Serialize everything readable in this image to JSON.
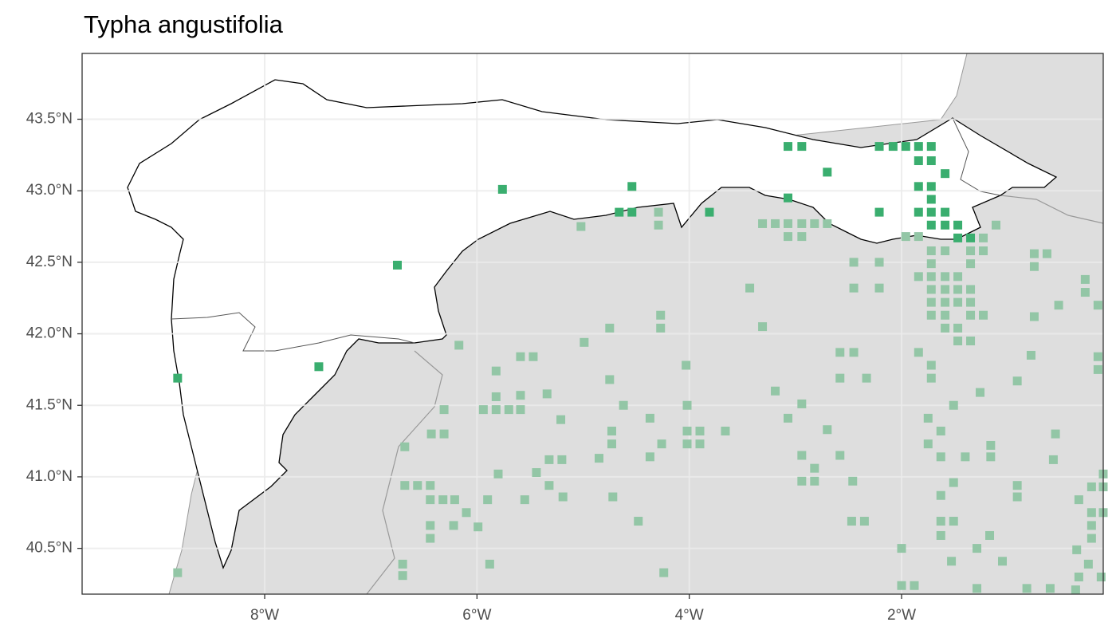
{
  "chart_data": {
    "type": "scatter",
    "title": "Typha angustifolia",
    "xlim": [
      -9.72,
      -0.1
    ],
    "ylim": [
      40.18,
      43.96
    ],
    "grid": true,
    "xticks": [
      {
        "value": -8,
        "label": "8°W"
      },
      {
        "value": -6,
        "label": "6°W"
      },
      {
        "value": -4,
        "label": "4°W"
      },
      {
        "value": -2,
        "label": "2°W"
      }
    ],
    "yticks": [
      {
        "value": 40.5,
        "label": "40.5°N"
      },
      {
        "value": 41.0,
        "label": "41.0°N"
      },
      {
        "value": 41.5,
        "label": "41.5°N"
      },
      {
        "value": 42.0,
        "label": "42.0°N"
      },
      {
        "value": 42.5,
        "label": "42.5°N"
      },
      {
        "value": 43.0,
        "label": "43.0°N"
      },
      {
        "value": 43.5,
        "label": "43.5°N"
      }
    ],
    "series": [
      {
        "color": "#93c6a6",
        "x": [
          -5.02,
          -4.29,
          -4.29,
          -3.31,
          -3.19,
          -3.07,
          -2.94,
          -2.82,
          -2.7,
          -3.07,
          -2.94,
          -1.11,
          -1.96,
          -1.84,
          -1.23,
          -1.23,
          -1.35,
          -1.72,
          -1.59,
          -2.45,
          -2.21,
          -1.72,
          -0.75,
          -0.63,
          -0.75,
          -1.35,
          -1.84,
          -1.72,
          -1.59,
          -1.47,
          -1.35,
          -2.45,
          -2.21,
          -3.43,
          -1.72,
          -1.59,
          -1.47,
          -1.72,
          -1.59,
          -1.47,
          -1.35,
          -0.27,
          -0.27,
          -0.52,
          -0.15,
          -1.72,
          -1.59,
          -1.35,
          -1.23,
          -0.75,
          -4.27,
          -4.27,
          -4.75,
          -3.31,
          -1.59,
          -1.47,
          -1.47,
          -1.35,
          -6.17,
          -4.99,
          -5.59,
          -5.47,
          -2.58,
          -2.45,
          -1.84,
          -0.78,
          -0.15,
          -0.15,
          -1.72,
          -4.03,
          -5.82,
          -2.58,
          -2.33,
          -1.72,
          -0.91,
          -4.75,
          -3.19,
          -1.26,
          -5.82,
          -5.59,
          -5.34,
          -5.94,
          -5.82,
          -5.7,
          -5.59,
          -4.62,
          -4.02,
          -2.94,
          -1.51,
          -6.31,
          -3.07,
          -1.75,
          -4.37,
          -5.21,
          -6.68,
          -6.43,
          -6.31,
          -4.73,
          -4.02,
          -3.9,
          -3.66,
          -2.7,
          -1.63,
          -0.55,
          -4.26,
          -4.73,
          -3.9,
          -4.02,
          -1.75,
          -1.16,
          -2.94,
          -2.58,
          -1.63,
          -1.4,
          -1.16,
          -0.57,
          -4.85,
          -4.37,
          -5.32,
          -5.2,
          -5.44,
          -2.82,
          -5.8,
          -2.94,
          -2.82,
          -2.46,
          -1.51,
          -6.68,
          -6.56,
          -6.44,
          -5.32,
          -0.91,
          -0.21,
          -0.1,
          -0.1,
          -6.44,
          -6.32,
          -6.21,
          -5.9,
          -5.55,
          -5.19,
          -4.72,
          -1.63,
          -0.91,
          -0.33,
          -0.21,
          -0.1,
          -6.1,
          -0.21,
          -1.63,
          -1.51,
          -2.47,
          -2.35,
          -1.17,
          -6.44,
          -6.22,
          -5.99,
          -4.48,
          -1.63,
          -0.21,
          -6.44,
          -1.29,
          -2.0,
          -0.35,
          -1.53,
          -1.05,
          -0.24,
          -6.7,
          -6.7,
          -5.88,
          -4.24,
          -0.33,
          -0.12,
          -8.82,
          -2.0,
          -1.88,
          -1.29,
          -0.82,
          -0.6,
          -0.36
        ],
        "values": [
          42.75,
          42.85,
          42.76,
          42.77,
          42.77,
          42.77,
          42.77,
          42.77,
          42.77,
          42.68,
          42.68,
          42.76,
          42.68,
          42.68,
          42.67,
          42.58,
          42.58,
          42.58,
          42.58,
          42.5,
          42.5,
          42.49,
          42.56,
          42.56,
          42.47,
          42.49,
          42.4,
          42.4,
          42.4,
          42.4,
          42.31,
          42.32,
          42.32,
          42.32,
          42.31,
          42.31,
          42.31,
          42.22,
          42.22,
          42.22,
          42.22,
          42.38,
          42.29,
          42.2,
          42.2,
          42.13,
          42.13,
          42.13,
          42.13,
          42.12,
          42.13,
          42.04,
          42.04,
          42.05,
          42.04,
          42.04,
          41.95,
          41.95,
          41.92,
          41.94,
          41.84,
          41.84,
          41.87,
          41.87,
          41.87,
          41.85,
          41.84,
          41.75,
          41.78,
          41.78,
          41.74,
          41.69,
          41.69,
          41.69,
          41.67,
          41.68,
          41.6,
          41.59,
          41.56,
          41.57,
          41.58,
          41.47,
          41.47,
          41.47,
          41.47,
          41.5,
          41.5,
          41.51,
          41.5,
          41.47,
          41.41,
          41.41,
          41.41,
          41.4,
          41.21,
          41.3,
          41.3,
          41.32,
          41.32,
          41.32,
          41.32,
          41.33,
          41.32,
          41.3,
          41.23,
          41.23,
          41.23,
          41.23,
          41.23,
          41.22,
          41.15,
          41.15,
          41.14,
          41.14,
          41.14,
          41.12,
          41.13,
          41.14,
          41.12,
          41.12,
          41.03,
          41.06,
          41.02,
          40.97,
          40.97,
          40.97,
          40.96,
          40.94,
          40.94,
          40.94,
          40.94,
          40.94,
          40.93,
          40.93,
          41.02,
          40.84,
          40.84,
          40.84,
          40.84,
          40.84,
          40.86,
          40.86,
          40.87,
          40.86,
          40.84,
          40.75,
          40.75,
          40.75,
          40.66,
          40.69,
          40.69,
          40.69,
          40.69,
          40.59,
          40.66,
          40.66,
          40.65,
          40.69,
          40.59,
          40.57,
          40.57,
          40.5,
          40.5,
          40.49,
          40.41,
          40.41,
          40.39,
          40.39,
          40.31,
          40.39,
          40.33,
          40.3,
          40.3,
          40.33,
          40.24,
          40.24,
          40.22,
          40.22,
          40.22,
          40.21
        ]
      },
      {
        "color": "#3aae6f",
        "x": [
          -8.82,
          -7.49,
          -6.75,
          -5.76,
          -4.54,
          -4.66,
          -4.54,
          -3.81,
          -3.07,
          -2.94,
          -3.07,
          -2.7,
          -2.21,
          -2.21,
          -2.08,
          -1.96,
          -1.84,
          -1.72,
          -1.84,
          -1.72,
          -1.59,
          -1.84,
          -1.72,
          -1.72,
          -1.84,
          -1.72,
          -1.59,
          -1.72,
          -1.59,
          -1.47,
          -1.47,
          -1.35
        ],
        "values": [
          41.69,
          41.77,
          42.48,
          43.01,
          43.03,
          42.85,
          42.85,
          42.85,
          43.31,
          43.31,
          42.95,
          43.13,
          42.85,
          43.31,
          43.31,
          43.31,
          43.31,
          43.31,
          43.21,
          43.21,
          43.12,
          43.03,
          43.03,
          42.94,
          42.85,
          42.85,
          42.85,
          42.76,
          42.76,
          42.76,
          42.67,
          42.67
        ]
      }
    ]
  }
}
